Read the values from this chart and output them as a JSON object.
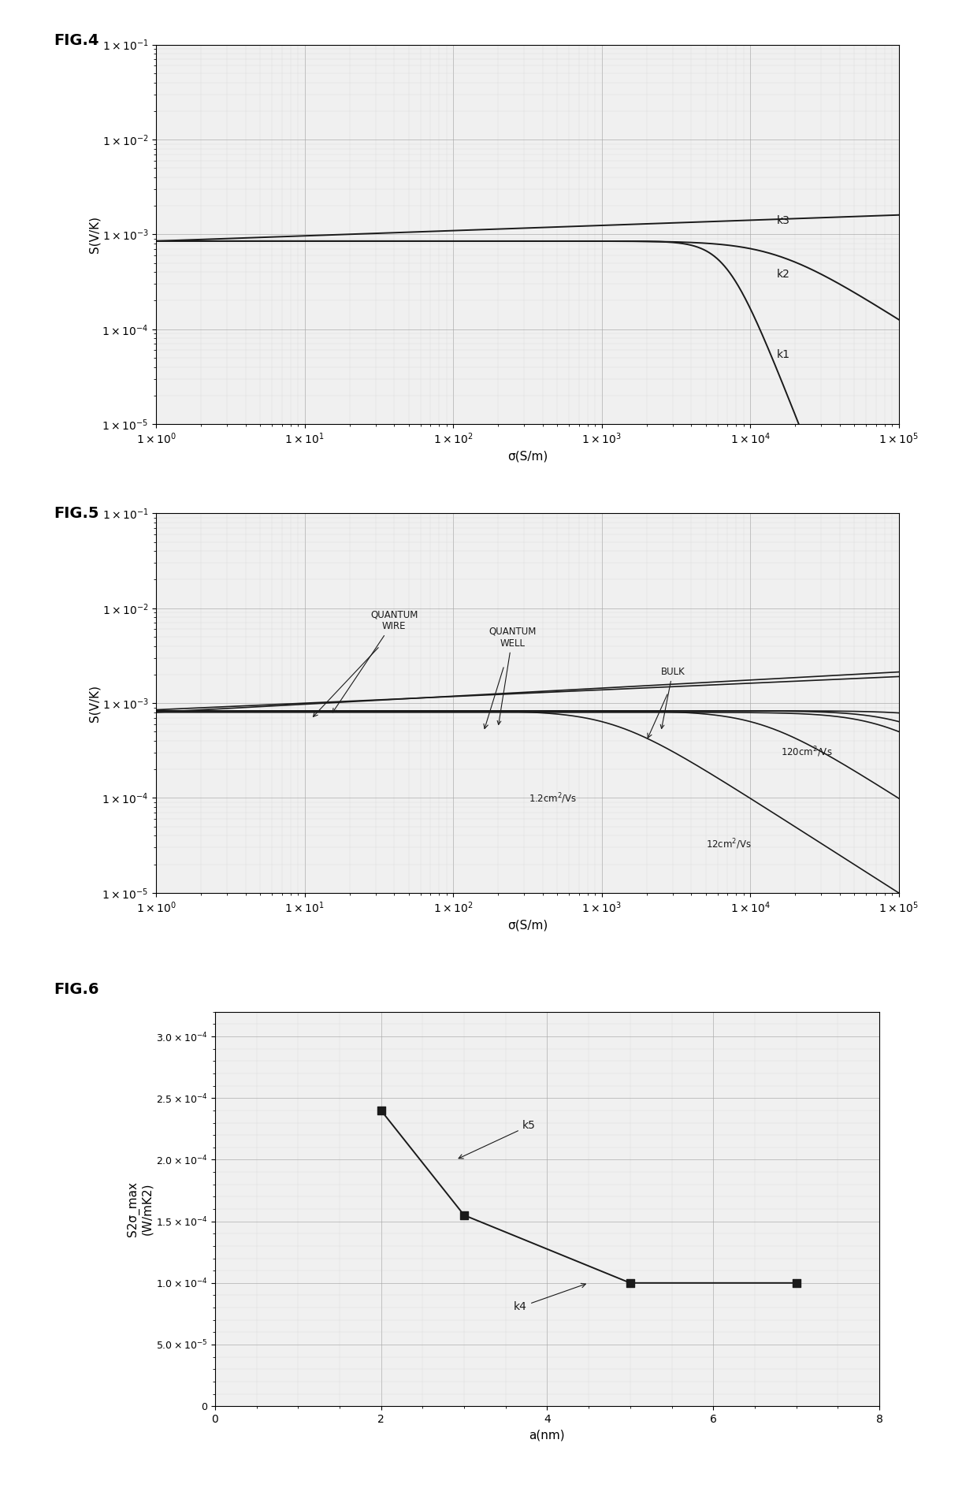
{
  "fig4": {
    "title": "FIG.4",
    "xlabel": "σ(S/m)",
    "ylabel": "S(V/K)",
    "xlim_log": [
      0,
      5
    ],
    "ylim_log": [
      -5,
      -1
    ],
    "k1": {
      "prefactor": 0.00085,
      "alpha": 0.0,
      "knee": 6000,
      "knee_power": 5,
      "floor": 1e-09
    },
    "k2": {
      "prefactor": 0.00085,
      "alpha": 0.0,
      "knee": 12000,
      "knee_power": 3,
      "floor": 5e-05
    },
    "k3": {
      "prefactor": 0.00095,
      "alpha": 0.06,
      "knee": 1000000000.0,
      "knee_power": 2,
      "floor": 0.0008
    }
  },
  "fig5": {
    "title": "FIG.5",
    "xlabel": "σ(S/m)",
    "ylabel": "S(V/K)",
    "xlim_log": [
      0,
      5
    ],
    "ylim_log": [
      -5,
      -1
    ]
  },
  "fig6": {
    "title": "FIG.6",
    "xlabel": "a(nm)",
    "ylabel": "S2σ_max\n(W/mK2)",
    "xlim": [
      0,
      8
    ],
    "ylim": [
      0,
      0.00032
    ],
    "x": [
      2,
      3,
      5,
      7
    ],
    "y": [
      0.00024,
      0.000155,
      0.0001,
      0.0001
    ],
    "yticks": [
      0,
      5e-05,
      0.0001,
      0.00015,
      0.0002,
      0.00025,
      0.0003
    ],
    "ytick_labels": [
      "0",
      "5.0×10⁻⁵",
      "1.0×10⁻⁴",
      "1.5×10⁻⁴",
      "2.0×10⁻⁴",
      "2.5×10⁻⁴",
      "3.0×10⁻⁴"
    ]
  },
  "bg_color": "#f0f0f0",
  "grid_major_color": "#aaaaaa",
  "grid_minor_color": "#cccccc",
  "line_color": "#1a1a1a"
}
